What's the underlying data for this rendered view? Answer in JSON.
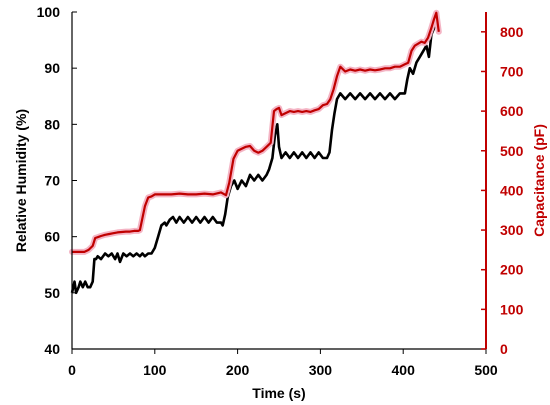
{
  "chart_data": {
    "type": "line",
    "xlabel": "Time (s)",
    "ylabel": "Relative Humidity (%)",
    "y2label": "Capacitance (pF)",
    "xlim": [
      0,
      500
    ],
    "ylim": [
      40,
      100
    ],
    "y2lim": [
      0,
      850
    ],
    "xticks": [
      "0",
      "100",
      "200",
      "300",
      "400",
      "500"
    ],
    "yticks": [
      "40",
      "50",
      "60",
      "70",
      "80",
      "90",
      "100"
    ],
    "y2ticks": [
      "0",
      "100",
      "200",
      "300",
      "400",
      "500",
      "600",
      "700",
      "800"
    ],
    "grid": false,
    "colors": {
      "humidity": "#000000",
      "capacitance": "#c00000",
      "capacitance_halo": "#f4b4c4",
      "right_axis": "#c00000"
    },
    "series": [
      {
        "axis": "left",
        "x": [
          0,
          3,
          5,
          8,
          10,
          13,
          16,
          19,
          22,
          25,
          27,
          29,
          31,
          35,
          40,
          44,
          48,
          52,
          55,
          58,
          62,
          66,
          70,
          74,
          78,
          82,
          85,
          88,
          92,
          96,
          100,
          104,
          108,
          112,
          114,
          118,
          122,
          126,
          130,
          135,
          140,
          145,
          150,
          155,
          160,
          165,
          170,
          175,
          180,
          182,
          185,
          188,
          192,
          196,
          200,
          205,
          210,
          215,
          220,
          225,
          230,
          235,
          238,
          242,
          245,
          248,
          250,
          253,
          258,
          263,
          268,
          273,
          278,
          283,
          288,
          293,
          298,
          303,
          308,
          311,
          314,
          317,
          320,
          324,
          330,
          336,
          342,
          348,
          354,
          360,
          366,
          372,
          378,
          384,
          390,
          396,
          402,
          405,
          408,
          412,
          416,
          420,
          424,
          428,
          431,
          434,
          437,
          440,
          443
        ],
        "y": [
          50,
          52,
          50,
          51,
          52,
          51,
          52,
          51,
          51,
          52,
          56,
          56,
          56.5,
          56,
          57,
          56.5,
          57,
          56,
          57,
          55.5,
          57,
          56.5,
          57,
          56.5,
          57,
          56.5,
          57,
          56.5,
          57,
          57,
          58,
          60,
          62,
          62.5,
          62,
          63,
          63.5,
          62.5,
          63.5,
          62.5,
          63.5,
          62.5,
          63.5,
          62.5,
          63.5,
          62.5,
          63.5,
          62.5,
          62.5,
          62,
          64,
          67,
          69,
          70,
          68.5,
          70,
          69,
          71,
          70,
          71,
          70,
          71,
          72,
          74,
          78,
          80,
          76,
          74,
          75,
          74,
          75,
          74,
          75,
          74,
          75,
          74,
          75,
          74,
          74,
          75,
          79,
          82,
          84.5,
          85.5,
          84.5,
          85.5,
          84.5,
          85.5,
          84.5,
          85.5,
          84.5,
          85.5,
          84.5,
          85.5,
          84.5,
          85.5,
          85.5,
          88,
          90,
          89,
          91,
          92,
          93,
          94,
          92,
          96,
          97,
          99,
          98
        ]
      },
      {
        "axis": "right",
        "x": [
          0,
          5,
          10,
          15,
          20,
          25,
          28,
          31,
          35,
          40,
          45,
          50,
          55,
          60,
          65,
          70,
          75,
          80,
          82,
          85,
          88,
          92,
          96,
          100,
          110,
          120,
          130,
          140,
          150,
          160,
          170,
          180,
          186,
          190,
          195,
          200,
          205,
          210,
          215,
          220,
          225,
          230,
          235,
          240,
          244,
          247,
          250,
          253,
          258,
          263,
          268,
          273,
          278,
          283,
          288,
          293,
          298,
          303,
          308,
          312,
          316,
          320,
          324,
          330,
          336,
          342,
          348,
          354,
          360,
          366,
          372,
          378,
          384,
          390,
          396,
          402,
          406,
          410,
          414,
          418,
          422,
          426,
          430,
          434,
          437,
          440,
          443
        ],
        "y": [
          245,
          245,
          245,
          245,
          250,
          260,
          280,
          282,
          285,
          288,
          290,
          292,
          294,
          295,
          296,
          296,
          298,
          298,
          300,
          330,
          360,
          382,
          385,
          390,
          390,
          390,
          392,
          390,
          390,
          392,
          390,
          395,
          388,
          420,
          480,
          500,
          505,
          510,
          512,
          500,
          495,
          500,
          510,
          520,
          600,
          605,
          608,
          590,
          595,
          600,
          598,
          600,
          598,
          600,
          598,
          602,
          605,
          615,
          618,
          630,
          655,
          688,
          712,
          700,
          705,
          702,
          705,
          702,
          705,
          703,
          705,
          708,
          708,
          712,
          712,
          718,
          722,
          752,
          765,
          770,
          775,
          772,
          785,
          810,
          830,
          848,
          800
        ]
      }
    ]
  }
}
